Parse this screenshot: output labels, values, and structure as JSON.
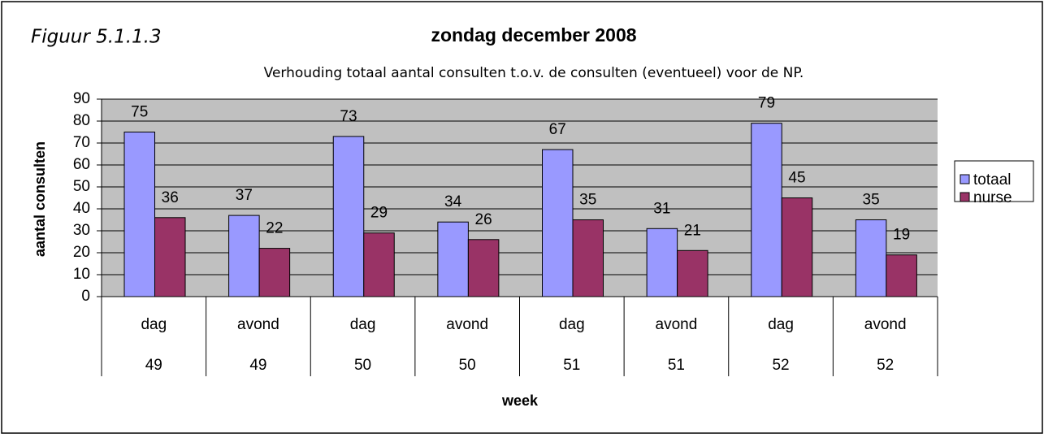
{
  "chart_data": {
    "type": "bar",
    "figure_label": "Figuur 5.1.1.3",
    "title": "zondag december 2008",
    "subtitle": "Verhouding totaal aantal consulten t.o.v. de consulten (eventueel) voor de NP.",
    "y_label": "aantal consulten",
    "x_label": "week",
    "categories": [
      "dag",
      "avond",
      "dag",
      "avond",
      "dag",
      "avond",
      "dag",
      "avond"
    ],
    "weeks": [
      "49",
      "49",
      "50",
      "50",
      "51",
      "51",
      "52",
      "52"
    ],
    "series": [
      {
        "name": "totaal",
        "color": "#9999ff",
        "values": [
          75,
          37,
          73,
          34,
          67,
          31,
          79,
          35
        ]
      },
      {
        "name": "nurse",
        "color": "#993366",
        "values": [
          36,
          22,
          29,
          26,
          35,
          21,
          45,
          19
        ]
      }
    ],
    "ylim": [
      0,
      90
    ],
    "yticks": [
      0,
      10,
      20,
      30,
      40,
      50,
      60,
      70,
      80,
      90
    ],
    "grid": true,
    "legend": "right"
  }
}
